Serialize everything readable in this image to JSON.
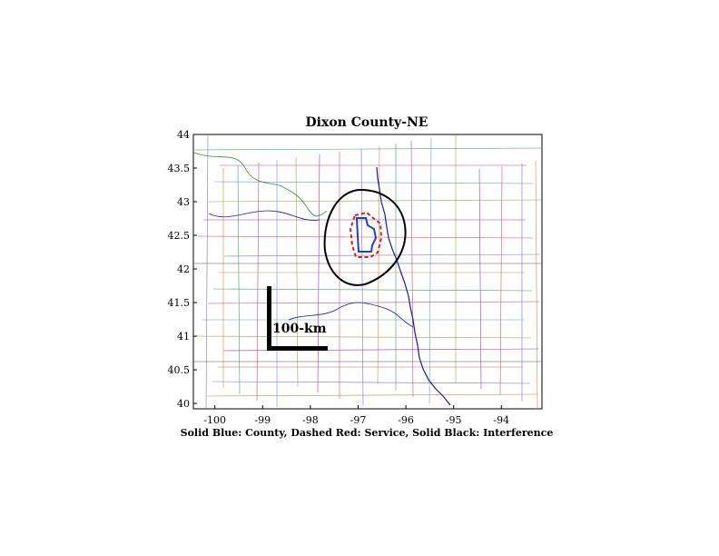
{
  "map": {
    "title": "Dixon County-NE",
    "caption": "Solid Blue: County, Dashed Red: Service, Solid Black: Interference",
    "scale_label": "100-km",
    "x_ticks": [
      "-100",
      "-99",
      "-98",
      "-97",
      "-96",
      "-95",
      "-94"
    ],
    "y_ticks": [
      "44",
      "43.5",
      "43",
      "42.5",
      "42",
      "41.5",
      "41",
      "40.5",
      "40"
    ],
    "x_range": [
      -100.45,
      -93.15
    ],
    "y_range": [
      39.92,
      44.0
    ],
    "colors": {
      "county": "#1f3fd8",
      "service": "#e01a1a",
      "interference": "#000000",
      "state_border": "#1a1aa0",
      "river": "#3a8a3a"
    },
    "legend": {
      "county": "Solid Blue: County",
      "service": "Dashed Red: Service",
      "interference": "Solid Black: Interference"
    }
  }
}
